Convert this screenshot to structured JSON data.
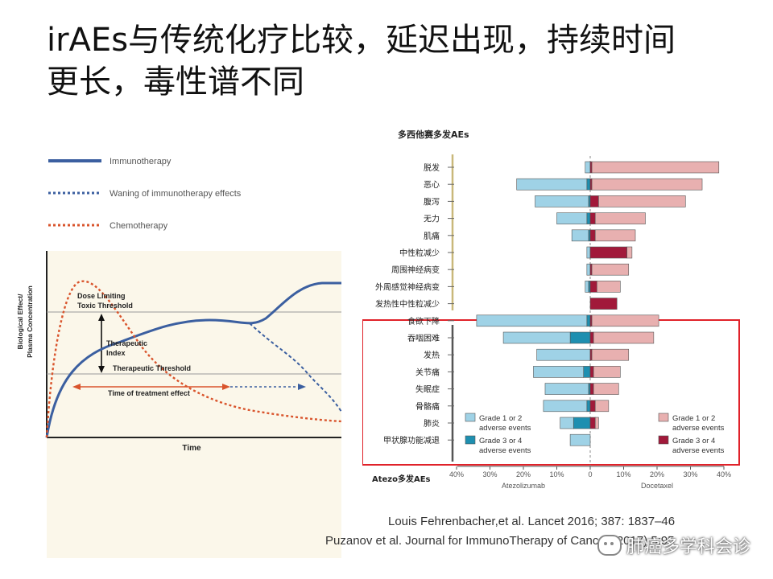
{
  "title": {
    "line1": "irAEs与传统化疗比较，延迟出现，持续时间",
    "line2": "更长，毒性谱不同"
  },
  "left_chart": {
    "legend": [
      {
        "label": "Immunotherapy",
        "style": "solid",
        "color": "#3b5fa0"
      },
      {
        "label": "Waning of immunotherapy effects",
        "style": "dotted",
        "color": "#3b5fa0"
      },
      {
        "label": "Chemotherapy",
        "style": "dotted",
        "color": "#d9542c"
      }
    ],
    "ylabel_line1": "Biological Effect/",
    "ylabel_line2": "Plasma Concentration",
    "xlabel": "Time",
    "dose_limiting_line1": "Dose Limiting",
    "dose_limiting_line2": "Toxic Threshold",
    "therapeutic_index_line1": "Therapeutic",
    "therapeutic_index_line2": "Index",
    "therapeutic_threshold": "Therapeutic Threshold",
    "time_of_effect": "Time of treatment effect"
  },
  "chart_data": {
    "type": "bar",
    "title": "多西他赛多发AEs",
    "bottom_label": "Atezo多发AEs",
    "categories": [
      "脱发",
      "恶心",
      "腹泻",
      "无力",
      "肌痛",
      "中性粒减少",
      "周围神经病变",
      "外周感觉神经病变",
      "发热性中性粒减少",
      "食欲下降",
      "吞咽困难",
      "发热",
      "关节痛",
      "失眠症",
      "骨骼痛",
      "肺炎",
      "甲状腺功能减退"
    ],
    "xlabel_left": "Atezolizumab",
    "xlabel_right": "Docetaxel",
    "xticks": [
      "40%",
      "30%",
      "20%",
      "10%",
      "0",
      "10%",
      "20%",
      "30%",
      "40%"
    ],
    "xlim": [
      -40,
      40
    ],
    "series": [
      {
        "name": "Grade 1 or 2 adverse events",
        "arm": "Atezolizumab",
        "color": "#9fd2e6",
        "values": [
          1.5,
          21,
          16,
          9,
          5,
          1,
          1,
          1,
          0,
          33,
          20,
          16,
          15,
          13,
          13,
          4,
          6
        ]
      },
      {
        "name": "Grade 3 or 4 adverse events",
        "arm": "Atezolizumab",
        "color": "#1e8fb0",
        "values": [
          0,
          1,
          0.5,
          1,
          0.5,
          0,
          0,
          0.5,
          0,
          1,
          6,
          0,
          2,
          0.5,
          1,
          5,
          0
        ]
      },
      {
        "name": "Grade 1 or 2 adverse events",
        "arm": "Docetaxel",
        "color": "#e8b0b0",
        "values": [
          38,
          33,
          26,
          15,
          12,
          1.5,
          11,
          7,
          0,
          20,
          18,
          11,
          8,
          7.5,
          4,
          1,
          0
        ]
      },
      {
        "name": "Grade 3 or 4 adverse events",
        "arm": "Docetaxel",
        "color": "#a1193a",
        "values": [
          0.5,
          0.5,
          2.5,
          1.5,
          1.5,
          11,
          0.5,
          2,
          8,
          0.5,
          1,
          0.5,
          1,
          1,
          1.5,
          1.5,
          0
        ]
      }
    ],
    "legend": {
      "left": [
        {
          "line1": "Grade 1 or 2",
          "line2": "adverse events",
          "color": "#9fd2e6"
        },
        {
          "line1": "Grade 3 or 4",
          "line2": "adverse events",
          "color": "#1e8fb0"
        }
      ],
      "right": [
        {
          "line1": "Grade 1 or 2",
          "line2": "adverse events",
          "color": "#e8b0b0"
        },
        {
          "line1": "Grade 3 or 4",
          "line2": "adverse events",
          "color": "#a1193a"
        }
      ]
    },
    "highlight_color": "#e0222a"
  },
  "citations": {
    "line1": "Louis Fehrenbacher,et  al. Lancet 2016; 387: 1837–46",
    "line2": "Puzanov et al. Journal for ImmunoTherapy  of Cancer (2017) 5:95"
  },
  "watermark": "肺癌多学科会诊"
}
